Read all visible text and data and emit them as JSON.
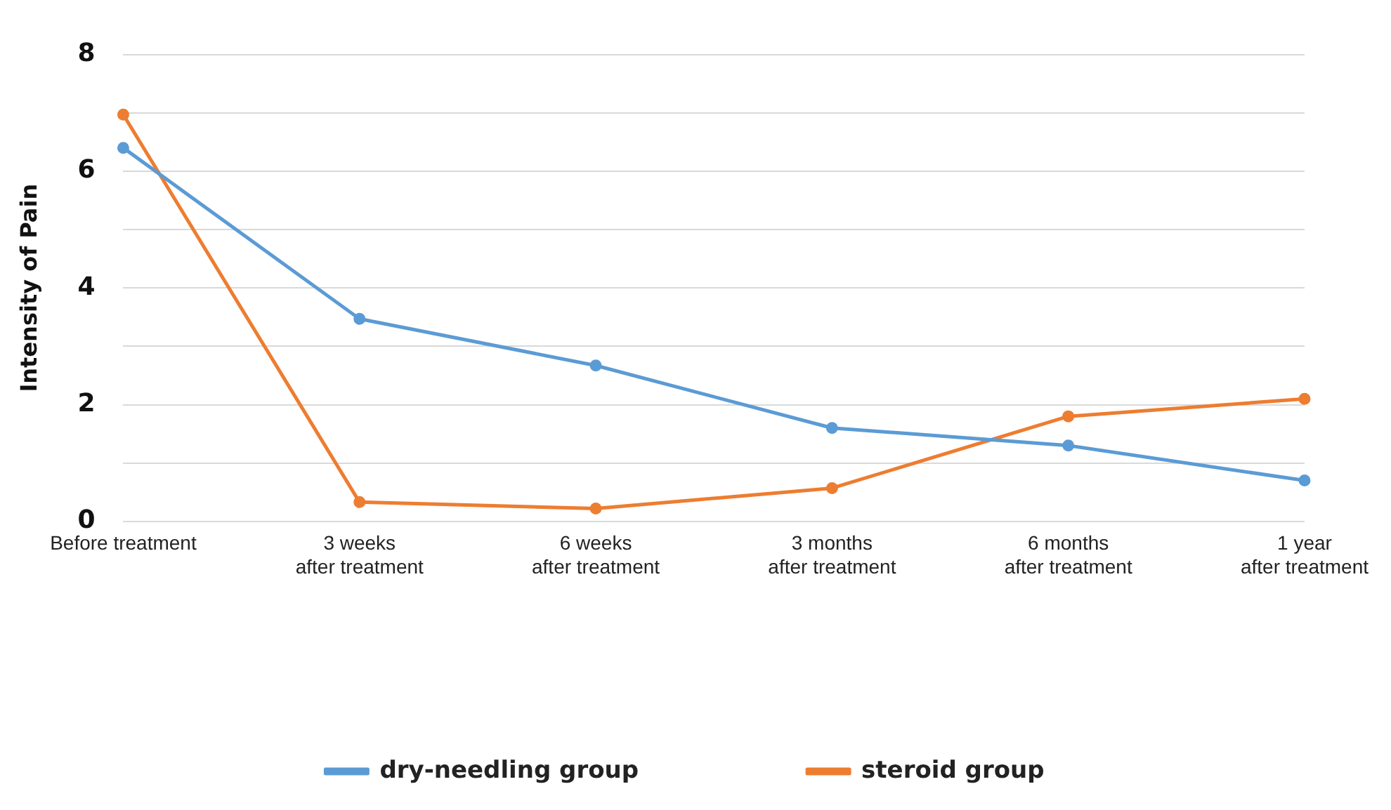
{
  "chart_data": {
    "type": "line",
    "ylabel": "Intensity of Pain",
    "categories": [
      "Before treatment",
      "3 weeks\nafter treatment",
      "6 weeks\nafter treatment",
      "3 months\nafter treatment",
      "6 months\nafter treatment",
      "1 year\nafter treatment"
    ],
    "series": [
      {
        "name": "dry-needling group",
        "color": "#5b9bd5",
        "values": [
          6.4,
          3.47,
          2.67,
          1.6,
          1.3,
          0.7
        ]
      },
      {
        "name": "steroid group",
        "color": "#ed7d31",
        "values": [
          6.97,
          0.33,
          0.22,
          0.57,
          1.8,
          2.1
        ]
      }
    ],
    "ylim": [
      0,
      8
    ],
    "yticks": [
      0,
      {
        "value": 1,
        "label": null
      },
      2,
      {
        "value": 3,
        "label": null
      },
      4,
      {
        "value": 5,
        "label": null
      },
      6,
      {
        "value": 7,
        "label": null
      },
      8
    ],
    "grid": "y",
    "legend": "bottom",
    "marker": "circle",
    "line_style": "solid"
  }
}
